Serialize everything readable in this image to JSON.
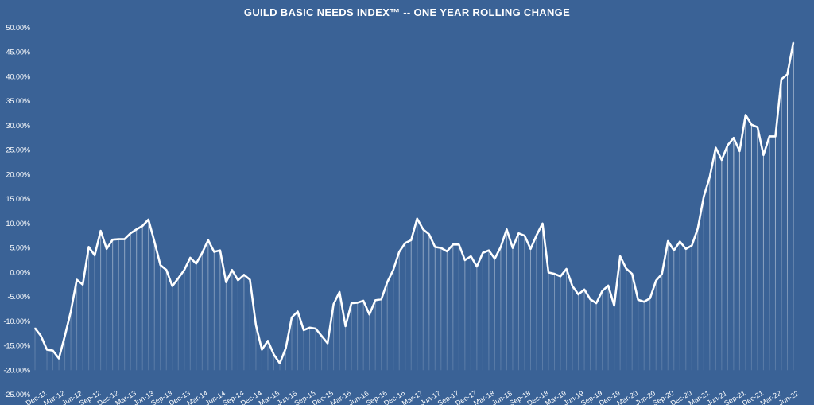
{
  "chart_data": {
    "type": "line",
    "title": "GUILD BASIC NEEDS INDEX™ -- ONE YEAR ROLLING CHANGE",
    "xlabel": "",
    "ylabel": "",
    "ylim": [
      -0.25,
      0.5
    ],
    "y_tick_values": [
      -0.25,
      -0.2,
      -0.15,
      -0.1,
      -0.05,
      0.0,
      0.05,
      0.1,
      0.15,
      0.2,
      0.25,
      0.3,
      0.35,
      0.4,
      0.45,
      0.5
    ],
    "y_tick_labels": [
      "-25.00%",
      "-20.00%",
      "-15.00%",
      "-10.00%",
      "-5.00%",
      "0.00%",
      "5.00%",
      "10.00%",
      "15.00%",
      "20.00%",
      "25.00%",
      "30.00%",
      "35.00%",
      "40.00%",
      "45.00%",
      "50.00%"
    ],
    "x_tick_labels": [
      {
        "index": 0,
        "label": "Dec-11"
      },
      {
        "index": 3,
        "label": "Mar-12"
      },
      {
        "index": 6,
        "label": "Jun-12"
      },
      {
        "index": 9,
        "label": "Sep-12"
      },
      {
        "index": 12,
        "label": "Dec-12"
      },
      {
        "index": 15,
        "label": "Mar-13"
      },
      {
        "index": 18,
        "label": "Jun-13"
      },
      {
        "index": 21,
        "label": "Sep-13"
      },
      {
        "index": 24,
        "label": "Dec-13"
      },
      {
        "index": 27,
        "label": "Mar-14"
      },
      {
        "index": 30,
        "label": "Jun-14"
      },
      {
        "index": 33,
        "label": "Sep-14"
      },
      {
        "index": 36,
        "label": "Dec-14"
      },
      {
        "index": 39,
        "label": "Mar-15"
      },
      {
        "index": 42,
        "label": "Jun-15"
      },
      {
        "index": 45,
        "label": "Sep-15"
      },
      {
        "index": 48,
        "label": "Dec-15"
      },
      {
        "index": 51,
        "label": "Mar-16"
      },
      {
        "index": 54,
        "label": "Jun-16"
      },
      {
        "index": 57,
        "label": "Sep-16"
      },
      {
        "index": 60,
        "label": "Dec-16"
      },
      {
        "index": 63,
        "label": "Mar-17"
      },
      {
        "index": 66,
        "label": "Jun-17"
      },
      {
        "index": 69,
        "label": "Sep-17"
      },
      {
        "index": 72,
        "label": "Dec-17"
      },
      {
        "index": 75,
        "label": "Mar-18"
      },
      {
        "index": 78,
        "label": "Jun-18"
      },
      {
        "index": 81,
        "label": "Sep-18"
      },
      {
        "index": 84,
        "label": "Dec-18"
      },
      {
        "index": 87,
        "label": "Mar-19"
      },
      {
        "index": 90,
        "label": "Jun-19"
      },
      {
        "index": 93,
        "label": "Sep-19"
      },
      {
        "index": 96,
        "label": "Dec-19"
      },
      {
        "index": 99,
        "label": "Mar-20"
      },
      {
        "index": 102,
        "label": "Jun-20"
      },
      {
        "index": 105,
        "label": "Sep-20"
      },
      {
        "index": 108,
        "label": "Dec-20"
      },
      {
        "index": 111,
        "label": "Mar-21"
      },
      {
        "index": 114,
        "label": "Jun-21"
      },
      {
        "index": 117,
        "label": "Sep-21"
      },
      {
        "index": 120,
        "label": "Dec-21"
      },
      {
        "index": 123,
        "label": "Mar-22"
      },
      {
        "index": 126,
        "label": "Jun-22"
      }
    ],
    "grid": false,
    "legend": "none",
    "line_color": "#ffffff",
    "background_color": "#3a6296",
    "series": [
      {
        "values": [
          -0.114,
          -0.13,
          -0.158,
          -0.16,
          -0.176,
          -0.13,
          -0.08,
          -0.015,
          -0.025,
          0.052,
          0.035,
          0.085,
          0.048,
          0.067,
          0.068,
          0.068,
          0.08,
          0.088,
          0.095,
          0.108,
          0.063,
          0.015,
          0.005,
          -0.028,
          -0.012,
          0.005,
          0.03,
          0.018,
          0.04,
          0.066,
          0.042,
          0.045,
          -0.02,
          0.005,
          -0.016,
          -0.005,
          -0.015,
          -0.108,
          -0.158,
          -0.14,
          -0.168,
          -0.186,
          -0.155,
          -0.092,
          -0.08,
          -0.118,
          -0.113,
          -0.115,
          -0.13,
          -0.145,
          -0.065,
          -0.04,
          -0.11,
          -0.063,
          -0.062,
          -0.058,
          -0.086,
          -0.057,
          -0.055,
          -0.02,
          0.005,
          0.042,
          0.06,
          0.066,
          0.11,
          0.088,
          0.078,
          0.052,
          0.05,
          0.043,
          0.057,
          0.057,
          0.025,
          0.033,
          0.012,
          0.04,
          0.045,
          0.028,
          0.052,
          0.088,
          0.05,
          0.08,
          0.075,
          0.048,
          0.076,
          0.1,
          0.0,
          -0.003,
          -0.008,
          0.007,
          -0.028,
          -0.045,
          -0.035,
          -0.055,
          -0.063,
          -0.038,
          -0.027,
          -0.068,
          0.033,
          0.008,
          -0.003,
          -0.056,
          -0.06,
          -0.053,
          -0.017,
          -0.003,
          0.064,
          0.045,
          0.063,
          0.048,
          0.055,
          0.09,
          0.155,
          0.195,
          0.255,
          0.23,
          0.26,
          0.275,
          0.248,
          0.322,
          0.302,
          0.297,
          0.24,
          0.278,
          0.278,
          0.395,
          0.405,
          0.47
        ]
      }
    ]
  }
}
